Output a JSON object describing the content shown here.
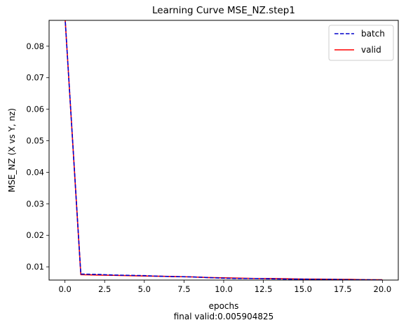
{
  "chart_data": {
    "type": "line",
    "title": "Learning Curve MSE_NZ.step1",
    "xlabel": "epochs",
    "xlabel_note": "final valid:0.005904825",
    "ylabel": "MSE_NZ (X vs Y, nz)",
    "xlim": [
      -1,
      21
    ],
    "ylim": [
      0.0058,
      0.0882
    ],
    "x_ticks": [
      0.0,
      2.5,
      5.0,
      7.5,
      10.0,
      12.5,
      15.0,
      17.5,
      20.0
    ],
    "x_tick_labels": [
      "0.0",
      "2.5",
      "5.0",
      "7.5",
      "10.0",
      "12.5",
      "15.0",
      "17.5",
      "20.0"
    ],
    "y_ticks": [
      0.01,
      0.02,
      0.03,
      0.04,
      0.05,
      0.06,
      0.07,
      0.08
    ],
    "y_tick_labels": [
      "0.01",
      "0.02",
      "0.03",
      "0.04",
      "0.05",
      "0.06",
      "0.07",
      "0.08"
    ],
    "grid": false,
    "legend": "top-right",
    "x": [
      0,
      1,
      2,
      3,
      4,
      5,
      6,
      7,
      8,
      9,
      10,
      11,
      12,
      13,
      14,
      15,
      16,
      17,
      18,
      19,
      20
    ],
    "series": [
      {
        "name": "batch",
        "color": "#0000cc",
        "style": "dashed",
        "values": [
          0.0895,
          0.0077,
          0.0076,
          0.0074,
          0.0073,
          0.0072,
          0.007,
          0.0069,
          0.0068,
          0.0066,
          0.0064,
          0.0063,
          0.0063,
          0.0062,
          0.0061,
          0.0061,
          0.006,
          0.006,
          0.0059,
          0.0059,
          0.0058
        ]
      },
      {
        "name": "valid",
        "color": "#ff0000",
        "style": "solid",
        "values": [
          0.0895,
          0.0075,
          0.0074,
          0.0073,
          0.0072,
          0.0071,
          0.007,
          0.0069,
          0.0068,
          0.0066,
          0.0065,
          0.0064,
          0.0063,
          0.0063,
          0.0062,
          0.0061,
          0.0061,
          0.006,
          0.006,
          0.0059,
          0.0059
        ]
      }
    ]
  }
}
